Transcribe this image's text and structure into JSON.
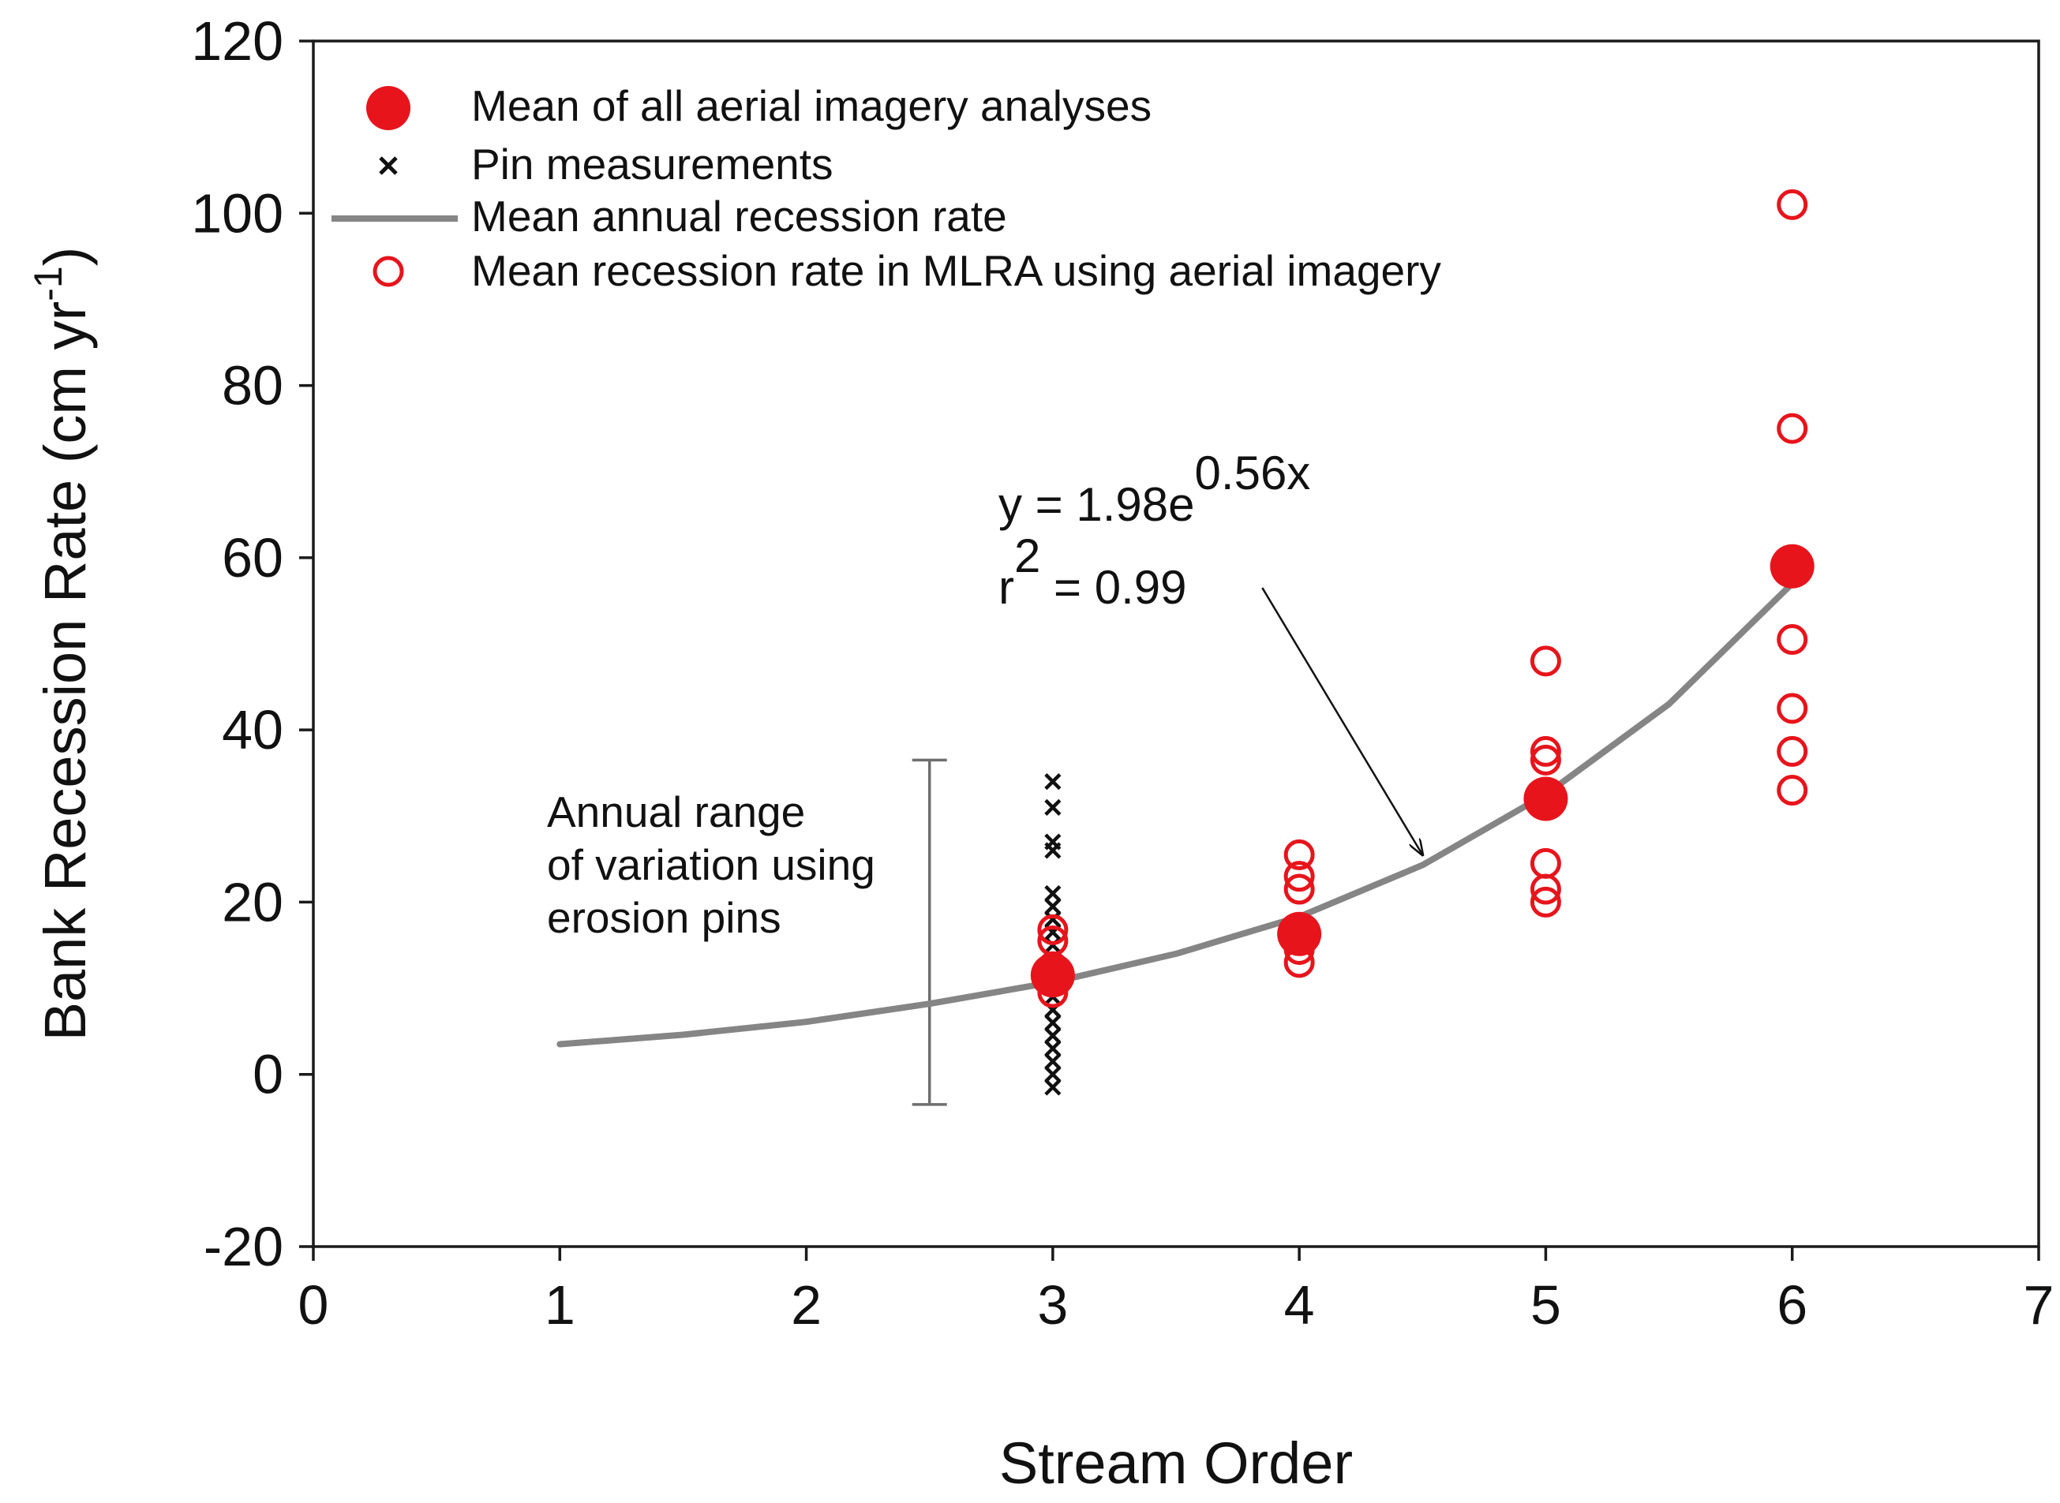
{
  "chart_data": {
    "type": "scatter",
    "xlabel": "Stream Order",
    "ylabel_main": "Bank Recession Rate (cm yr",
    "ylabel_sup": "-1",
    "ylabel_close": ")",
    "xlim": [
      0,
      7
    ],
    "ylim": [
      -20,
      120
    ],
    "x_ticks": [
      0,
      1,
      2,
      3,
      4,
      5,
      6,
      7
    ],
    "y_ticks": [
      -20,
      0,
      20,
      40,
      60,
      80,
      100,
      120
    ],
    "x_tick_labels": [
      "0",
      "1",
      "2",
      "3",
      "4",
      "5",
      "6",
      "7"
    ],
    "y_tick_labels": [
      "-20",
      "0",
      "20",
      "40",
      "60",
      "80",
      "100",
      "120"
    ],
    "grid": false,
    "legend_position": "top-left",
    "legend": [
      {
        "key": "mean_all",
        "label": "Mean of all aerial imagery analyses"
      },
      {
        "key": "pins",
        "label": "Pin measurements"
      },
      {
        "key": "fit",
        "label": "Mean annual recession rate"
      },
      {
        "key": "mlra",
        "label": "Mean recession rate in MLRA using aerial imagery"
      }
    ],
    "series": [
      {
        "name": "Mean of all aerial imagery analyses",
        "marker": "filled-circle",
        "color": "#e8141b",
        "points": [
          {
            "x": 3,
            "y": 11.5
          },
          {
            "x": 4,
            "y": 16.3
          },
          {
            "x": 5,
            "y": 32.0
          },
          {
            "x": 6,
            "y": 59.0
          }
        ]
      },
      {
        "name": "Pin measurements",
        "marker": "x",
        "color": "#111111",
        "points": [
          {
            "x": 3,
            "y": -1.5
          },
          {
            "x": 3,
            "y": 0
          },
          {
            "x": 3,
            "y": 1.5
          },
          {
            "x": 3,
            "y": 3
          },
          {
            "x": 3,
            "y": 4.5
          },
          {
            "x": 3,
            "y": 6
          },
          {
            "x": 3,
            "y": 7.5
          },
          {
            "x": 3,
            "y": 9
          },
          {
            "x": 3,
            "y": 10.5
          },
          {
            "x": 3,
            "y": 12
          },
          {
            "x": 3,
            "y": 13.5
          },
          {
            "x": 3,
            "y": 15
          },
          {
            "x": 3,
            "y": 16.5
          },
          {
            "x": 3,
            "y": 18
          },
          {
            "x": 3,
            "y": 19.5
          },
          {
            "x": 3,
            "y": 21
          },
          {
            "x": 3,
            "y": 26
          },
          {
            "x": 3,
            "y": 27
          },
          {
            "x": 3,
            "y": 31
          },
          {
            "x": 3,
            "y": 34
          }
        ]
      },
      {
        "name": "Mean recession rate in MLRA using aerial imagery",
        "marker": "open-circle",
        "color": "#e8141b",
        "points": [
          {
            "x": 3,
            "y": 9.5
          },
          {
            "x": 3,
            "y": 11
          },
          {
            "x": 3,
            "y": 12.5
          },
          {
            "x": 3,
            "y": 15.5
          },
          {
            "x": 3,
            "y": 16.8
          },
          {
            "x": 4,
            "y": 13
          },
          {
            "x": 4,
            "y": 14.5
          },
          {
            "x": 4,
            "y": 17
          },
          {
            "x": 4,
            "y": 21.5
          },
          {
            "x": 4,
            "y": 23
          },
          {
            "x": 4,
            "y": 25.5
          },
          {
            "x": 5,
            "y": 20
          },
          {
            "x": 5,
            "y": 21.5
          },
          {
            "x": 5,
            "y": 24.5
          },
          {
            "x": 5,
            "y": 31.5
          },
          {
            "x": 5,
            "y": 36.5
          },
          {
            "x": 5,
            "y": 37.5
          },
          {
            "x": 5,
            "y": 48
          },
          {
            "x": 6,
            "y": 33
          },
          {
            "x": 6,
            "y": 37.5
          },
          {
            "x": 6,
            "y": 42.5
          },
          {
            "x": 6,
            "y": 50.5
          },
          {
            "x": 6,
            "y": 75
          },
          {
            "x": 6,
            "y": 101
          }
        ]
      },
      {
        "name": "Mean annual recession rate",
        "marker": "line",
        "color": "#858585",
        "x": [
          1,
          1.5,
          2,
          2.5,
          3,
          3.5,
          4,
          4.5,
          5,
          5.5,
          6
        ],
        "y": [
          3.5,
          4.6,
          6.1,
          8.2,
          10.7,
          14.0,
          18.3,
          24.3,
          32.5,
          43.0,
          57.0
        ]
      }
    ],
    "error_bar": {
      "x": 2.5,
      "y_low": -3.5,
      "y_high": 36.5,
      "color": "#6e6e6e"
    },
    "annotations": {
      "range_note": [
        "Annual range",
        "of variation using",
        "erosion pins"
      ],
      "equation_prefix": "y = 1.98e",
      "equation_exponent": "0.56x",
      "r2_prefix": "r",
      "r2_exponent": "2",
      "r2_value": " = 0.99",
      "arrow": {
        "from_x": 3.85,
        "from_y": 56.5,
        "to_x": 4.5,
        "to_y": 25.5
      }
    }
  }
}
